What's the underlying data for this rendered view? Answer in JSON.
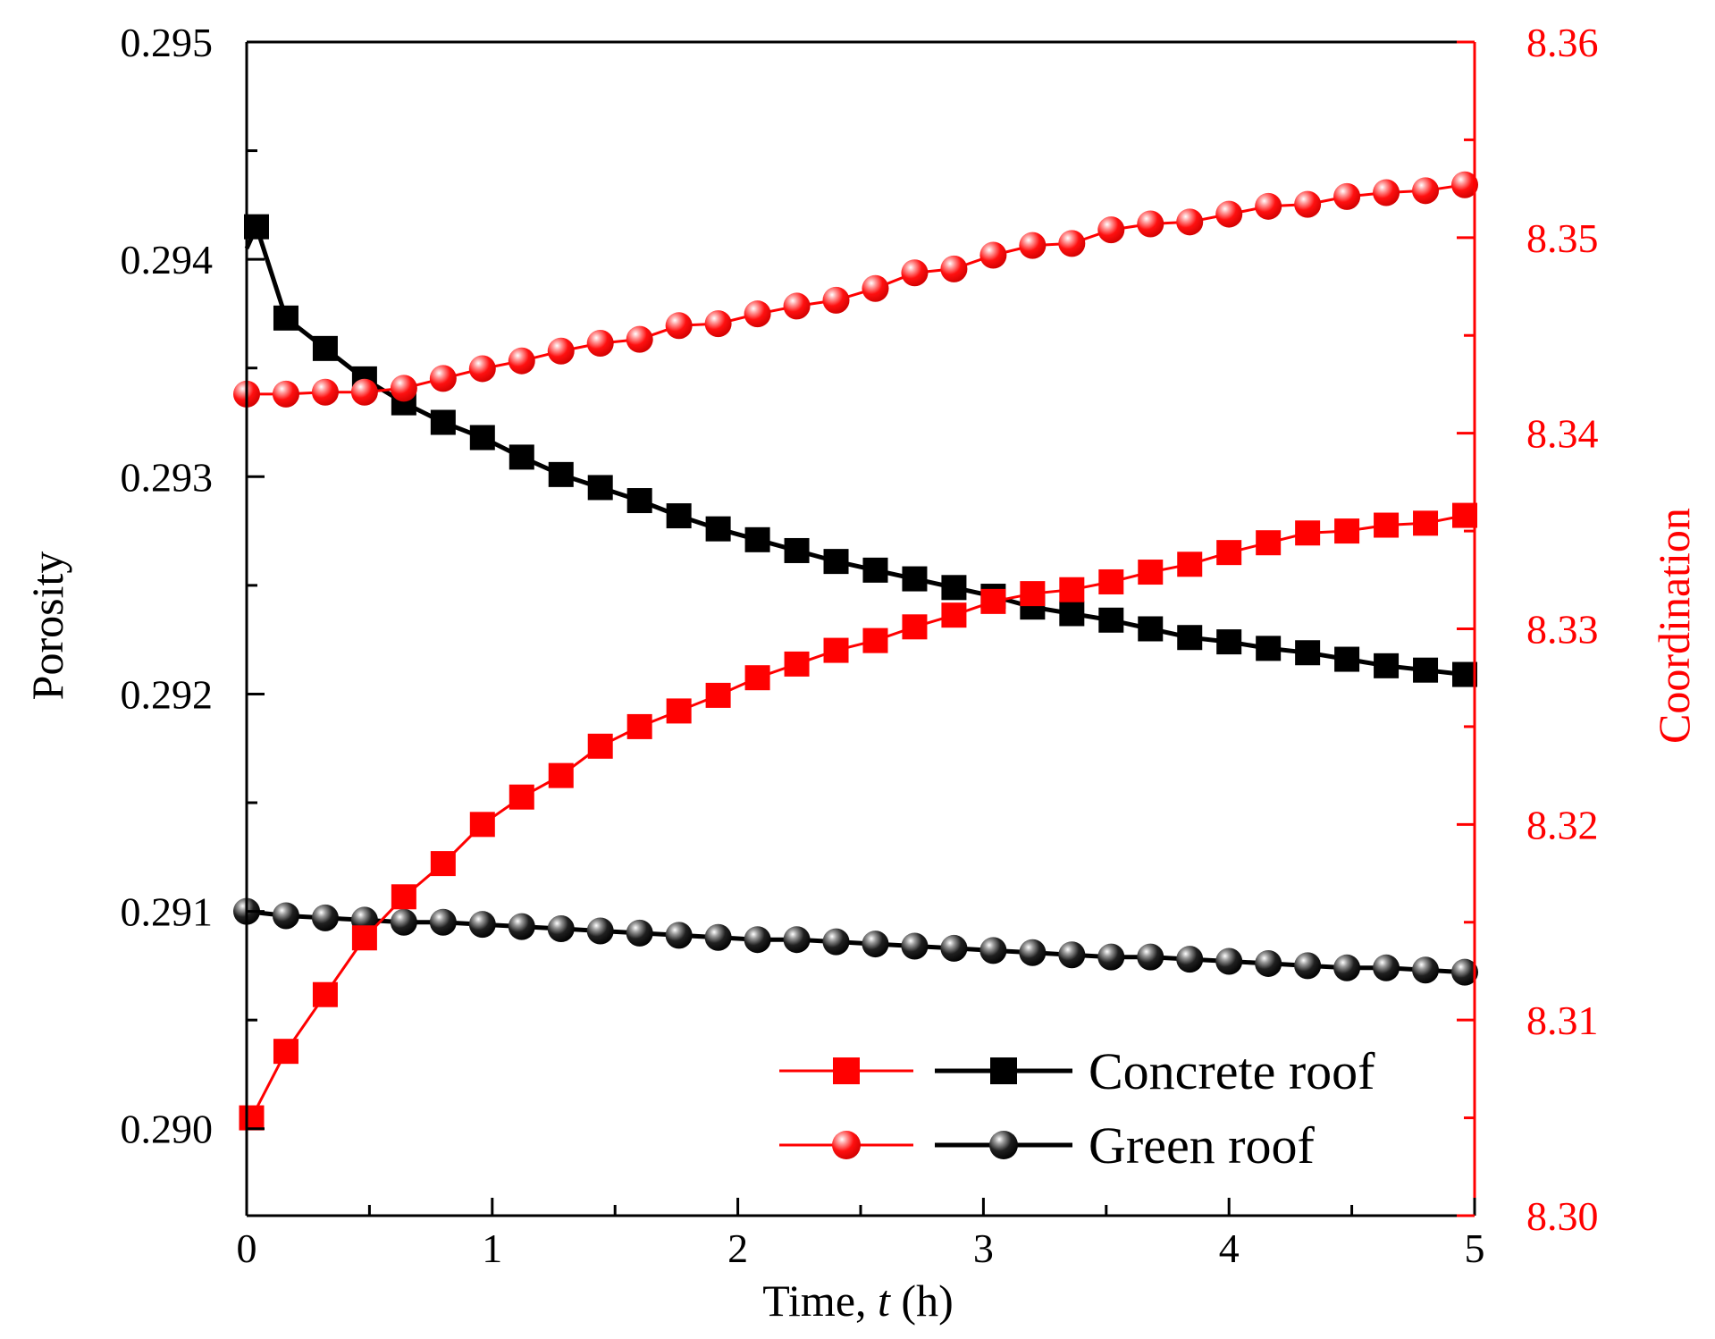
{
  "chart_data": {
    "type": "line",
    "title": "",
    "xlabel": {
      "prefix": "Time, ",
      "var": "t",
      "suffix": " (h)"
    },
    "ylabel": "Porosity",
    "y2label": "Coordination",
    "xlim": [
      0,
      5
    ],
    "ylim": [
      0.2896,
      0.295
    ],
    "y2lim": [
      8.3,
      8.36
    ],
    "xticks": [
      {
        "value": 0,
        "label": "0"
      },
      {
        "value": 1,
        "label": "1"
      },
      {
        "value": 2,
        "label": "2"
      },
      {
        "value": 3,
        "label": "3"
      },
      {
        "value": 4,
        "label": "4"
      },
      {
        "value": 5,
        "label": "5"
      }
    ],
    "yticks": [
      {
        "value": 0.29,
        "label": "0.290"
      },
      {
        "value": 0.291,
        "label": "0.291"
      },
      {
        "value": 0.292,
        "label": "0.292"
      },
      {
        "value": 0.293,
        "label": "0.293"
      },
      {
        "value": 0.294,
        "label": "0.294"
      },
      {
        "value": 0.295,
        "label": "0.295"
      }
    ],
    "y2ticks": [
      {
        "value": 8.3,
        "label": "8.30"
      },
      {
        "value": 8.31,
        "label": "8.31"
      },
      {
        "value": 8.32,
        "label": "8.32"
      },
      {
        "value": 8.33,
        "label": "8.33"
      },
      {
        "value": 8.34,
        "label": "8.34"
      },
      {
        "value": 8.35,
        "label": "8.35"
      },
      {
        "value": 8.36,
        "label": "8.36"
      }
    ],
    "colors": {
      "porosity": "#000000",
      "coordination": "#ff0000"
    },
    "legend": {
      "position": "bottom-right",
      "entries": [
        {
          "label": "Concrete roof",
          "marker": "square"
        },
        {
          "label": "Green roof",
          "marker": "sphere"
        }
      ]
    },
    "series": [
      {
        "name": "Concrete roof porosity",
        "axis": "left",
        "color": "#000000",
        "marker": "square",
        "points": [
          [
            0.04,
            0.29415
          ],
          [
            0.16,
            0.29373
          ],
          [
            0.32,
            0.29359
          ],
          [
            0.48,
            0.29345
          ],
          [
            0.64,
            0.29334
          ],
          [
            0.8,
            0.29325
          ],
          [
            0.96,
            0.29318
          ],
          [
            1.12,
            0.29309
          ],
          [
            1.28,
            0.29301
          ],
          [
            1.44,
            0.29295
          ],
          [
            1.6,
            0.29289
          ],
          [
            1.76,
            0.29282
          ],
          [
            1.92,
            0.29276
          ],
          [
            2.08,
            0.29271
          ],
          [
            2.24,
            0.29266
          ],
          [
            2.4,
            0.29261
          ],
          [
            2.56,
            0.29257
          ],
          [
            2.72,
            0.29253
          ],
          [
            2.88,
            0.29249
          ],
          [
            3.04,
            0.29245
          ],
          [
            3.2,
            0.2924
          ],
          [
            3.36,
            0.29237
          ],
          [
            3.52,
            0.29234
          ],
          [
            3.68,
            0.2923
          ],
          [
            3.84,
            0.29226
          ],
          [
            4.0,
            0.29224
          ],
          [
            4.16,
            0.29221
          ],
          [
            4.32,
            0.29219
          ],
          [
            4.48,
            0.29216
          ],
          [
            4.64,
            0.29213
          ],
          [
            4.8,
            0.29211
          ],
          [
            4.96,
            0.29209
          ]
        ]
      },
      {
        "name": "Green roof porosity",
        "axis": "left",
        "color": "#000000",
        "marker": "sphere",
        "points": [
          [
            0.0,
            0.291
          ],
          [
            0.16,
            0.29098
          ],
          [
            0.32,
            0.29097
          ],
          [
            0.48,
            0.29096
          ],
          [
            0.64,
            0.29095
          ],
          [
            0.8,
            0.29095
          ],
          [
            0.96,
            0.29094
          ],
          [
            1.12,
            0.29093
          ],
          [
            1.28,
            0.29092
          ],
          [
            1.44,
            0.29091
          ],
          [
            1.6,
            0.2909
          ],
          [
            1.76,
            0.29089
          ],
          [
            1.92,
            0.29088
          ],
          [
            2.08,
            0.29087
          ],
          [
            2.24,
            0.29087
          ],
          [
            2.4,
            0.29086
          ],
          [
            2.56,
            0.29085
          ],
          [
            2.72,
            0.29084
          ],
          [
            2.88,
            0.29083
          ],
          [
            3.04,
            0.29082
          ],
          [
            3.2,
            0.29081
          ],
          [
            3.36,
            0.2908
          ],
          [
            3.52,
            0.29079
          ],
          [
            3.68,
            0.29079
          ],
          [
            3.84,
            0.29078
          ],
          [
            4.0,
            0.29077
          ],
          [
            4.16,
            0.29076
          ],
          [
            4.32,
            0.29075
          ],
          [
            4.48,
            0.29074
          ],
          [
            4.64,
            0.29074
          ],
          [
            4.8,
            0.29073
          ],
          [
            4.96,
            0.29072
          ]
        ]
      },
      {
        "name": "Concrete roof coordination",
        "axis": "right",
        "color": "#ff0000",
        "marker": "square",
        "points": [
          [
            0.02,
            8.305
          ],
          [
            0.16,
            8.3084
          ],
          [
            0.32,
            8.3113
          ],
          [
            0.48,
            8.3142
          ],
          [
            0.64,
            8.3163
          ],
          [
            0.8,
            8.318
          ],
          [
            0.96,
            8.32
          ],
          [
            1.12,
            8.3214
          ],
          [
            1.28,
            8.3225
          ],
          [
            1.44,
            8.324
          ],
          [
            1.6,
            8.325
          ],
          [
            1.76,
            8.3258
          ],
          [
            1.92,
            8.3266
          ],
          [
            2.08,
            8.3275
          ],
          [
            2.24,
            8.3282
          ],
          [
            2.4,
            8.3289
          ],
          [
            2.56,
            8.3294
          ],
          [
            2.72,
            8.3301
          ],
          [
            2.88,
            8.3307
          ],
          [
            3.04,
            8.3314
          ],
          [
            3.2,
            8.3318
          ],
          [
            3.36,
            8.332
          ],
          [
            3.52,
            8.3324
          ],
          [
            3.68,
            8.3329
          ],
          [
            3.84,
            8.3333
          ],
          [
            4.0,
            8.3339
          ],
          [
            4.16,
            8.3344
          ],
          [
            4.32,
            8.3349
          ],
          [
            4.48,
            8.335
          ],
          [
            4.64,
            8.3353
          ],
          [
            4.8,
            8.3354
          ],
          [
            4.96,
            8.3358
          ]
        ]
      },
      {
        "name": "Green roof coordination",
        "axis": "right",
        "color": "#ff0000",
        "marker": "sphere",
        "points": [
          [
            0.0,
            8.342
          ],
          [
            0.16,
            8.342
          ],
          [
            0.32,
            8.3421
          ],
          [
            0.48,
            8.3421
          ],
          [
            0.64,
            8.3423
          ],
          [
            0.8,
            8.3428
          ],
          [
            0.96,
            8.3433
          ],
          [
            1.12,
            8.3437
          ],
          [
            1.28,
            8.3442
          ],
          [
            1.44,
            8.3446
          ],
          [
            1.6,
            8.3448
          ],
          [
            1.76,
            8.3455
          ],
          [
            1.92,
            8.3456
          ],
          [
            2.08,
            8.3461
          ],
          [
            2.24,
            8.3465
          ],
          [
            2.4,
            8.3468
          ],
          [
            2.56,
            8.3474
          ],
          [
            2.72,
            8.3482
          ],
          [
            2.88,
            8.3484
          ],
          [
            3.04,
            8.3491
          ],
          [
            3.2,
            8.3496
          ],
          [
            3.36,
            8.3497
          ],
          [
            3.52,
            8.3504
          ],
          [
            3.68,
            8.3507
          ],
          [
            3.84,
            8.3508
          ],
          [
            4.0,
            8.3512
          ],
          [
            4.16,
            8.3516
          ],
          [
            4.32,
            8.3517
          ],
          [
            4.48,
            8.3521
          ],
          [
            4.64,
            8.3523
          ],
          [
            4.8,
            8.3524
          ],
          [
            4.96,
            8.3527
          ]
        ]
      }
    ]
  }
}
